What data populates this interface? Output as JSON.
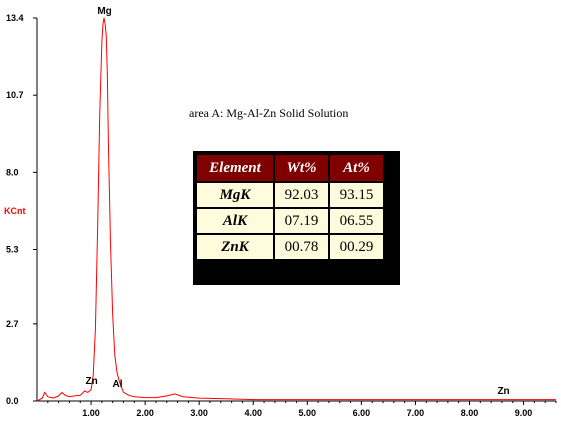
{
  "chart_data": {
    "type": "line",
    "ylabel": "KCnt",
    "xlabel": "",
    "xlim": [
      0.0,
      9.6
    ],
    "ylim": [
      0.0,
      13.4
    ],
    "x_ticks": [
      "1.00",
      "2.00",
      "3.00",
      "4.00",
      "5.00",
      "6.00",
      "7.00",
      "8.00",
      "9.00"
    ],
    "y_ticks": [
      "0.0",
      "2.7",
      "5.3",
      "8.0",
      "10.7",
      "13.4"
    ],
    "series_color": "#ff0000",
    "spectrum": {
      "x": [
        0.0,
        0.1,
        0.14,
        0.2,
        0.3,
        0.4,
        0.46,
        0.52,
        0.6,
        0.7,
        0.8,
        0.88,
        0.94,
        1.0,
        1.04,
        1.08,
        1.12,
        1.16,
        1.2,
        1.22,
        1.24,
        1.26,
        1.28,
        1.3,
        1.32,
        1.36,
        1.4,
        1.44,
        1.48,
        1.52,
        1.56,
        1.6,
        1.7,
        1.8,
        2.0,
        2.2,
        2.4,
        2.55,
        2.7,
        3.0,
        3.5,
        4.0,
        5.0,
        6.0,
        7.0,
        8.0,
        8.6,
        9.0,
        9.6
      ],
      "y": [
        0.0,
        0.1,
        0.3,
        0.15,
        0.1,
        0.18,
        0.3,
        0.2,
        0.15,
        0.18,
        0.2,
        0.35,
        0.3,
        0.4,
        0.9,
        2.5,
        6.0,
        10.0,
        12.6,
        13.2,
        13.4,
        13.2,
        12.8,
        11.5,
        9.0,
        5.5,
        3.0,
        1.6,
        1.0,
        0.7,
        0.5,
        0.3,
        0.2,
        0.15,
        0.12,
        0.12,
        0.18,
        0.25,
        0.15,
        0.1,
        0.08,
        0.05,
        0.05,
        0.05,
        0.05,
        0.05,
        0.05,
        0.05,
        0.05
      ]
    },
    "peak_labels": [
      {
        "text": "Mg",
        "x": 1.25,
        "y": 13.4
      },
      {
        "text": "Zn",
        "x": 1.01,
        "y": 0.45
      },
      {
        "text": "Al",
        "x": 1.49,
        "y": 0.35
      },
      {
        "text": "Zn",
        "x": 8.63,
        "y": 0.1
      }
    ],
    "annotation": "area A:  Mg-Al-Zn Solid Solution",
    "table": {
      "headers": [
        "Element",
        "Wt%",
        "At%"
      ],
      "rows": [
        [
          "MgK",
          "92.03",
          "93.15"
        ],
        [
          "AlK",
          "07.19",
          "06.55"
        ],
        [
          "ZnK",
          "00.78",
          "00.29"
        ]
      ]
    }
  }
}
